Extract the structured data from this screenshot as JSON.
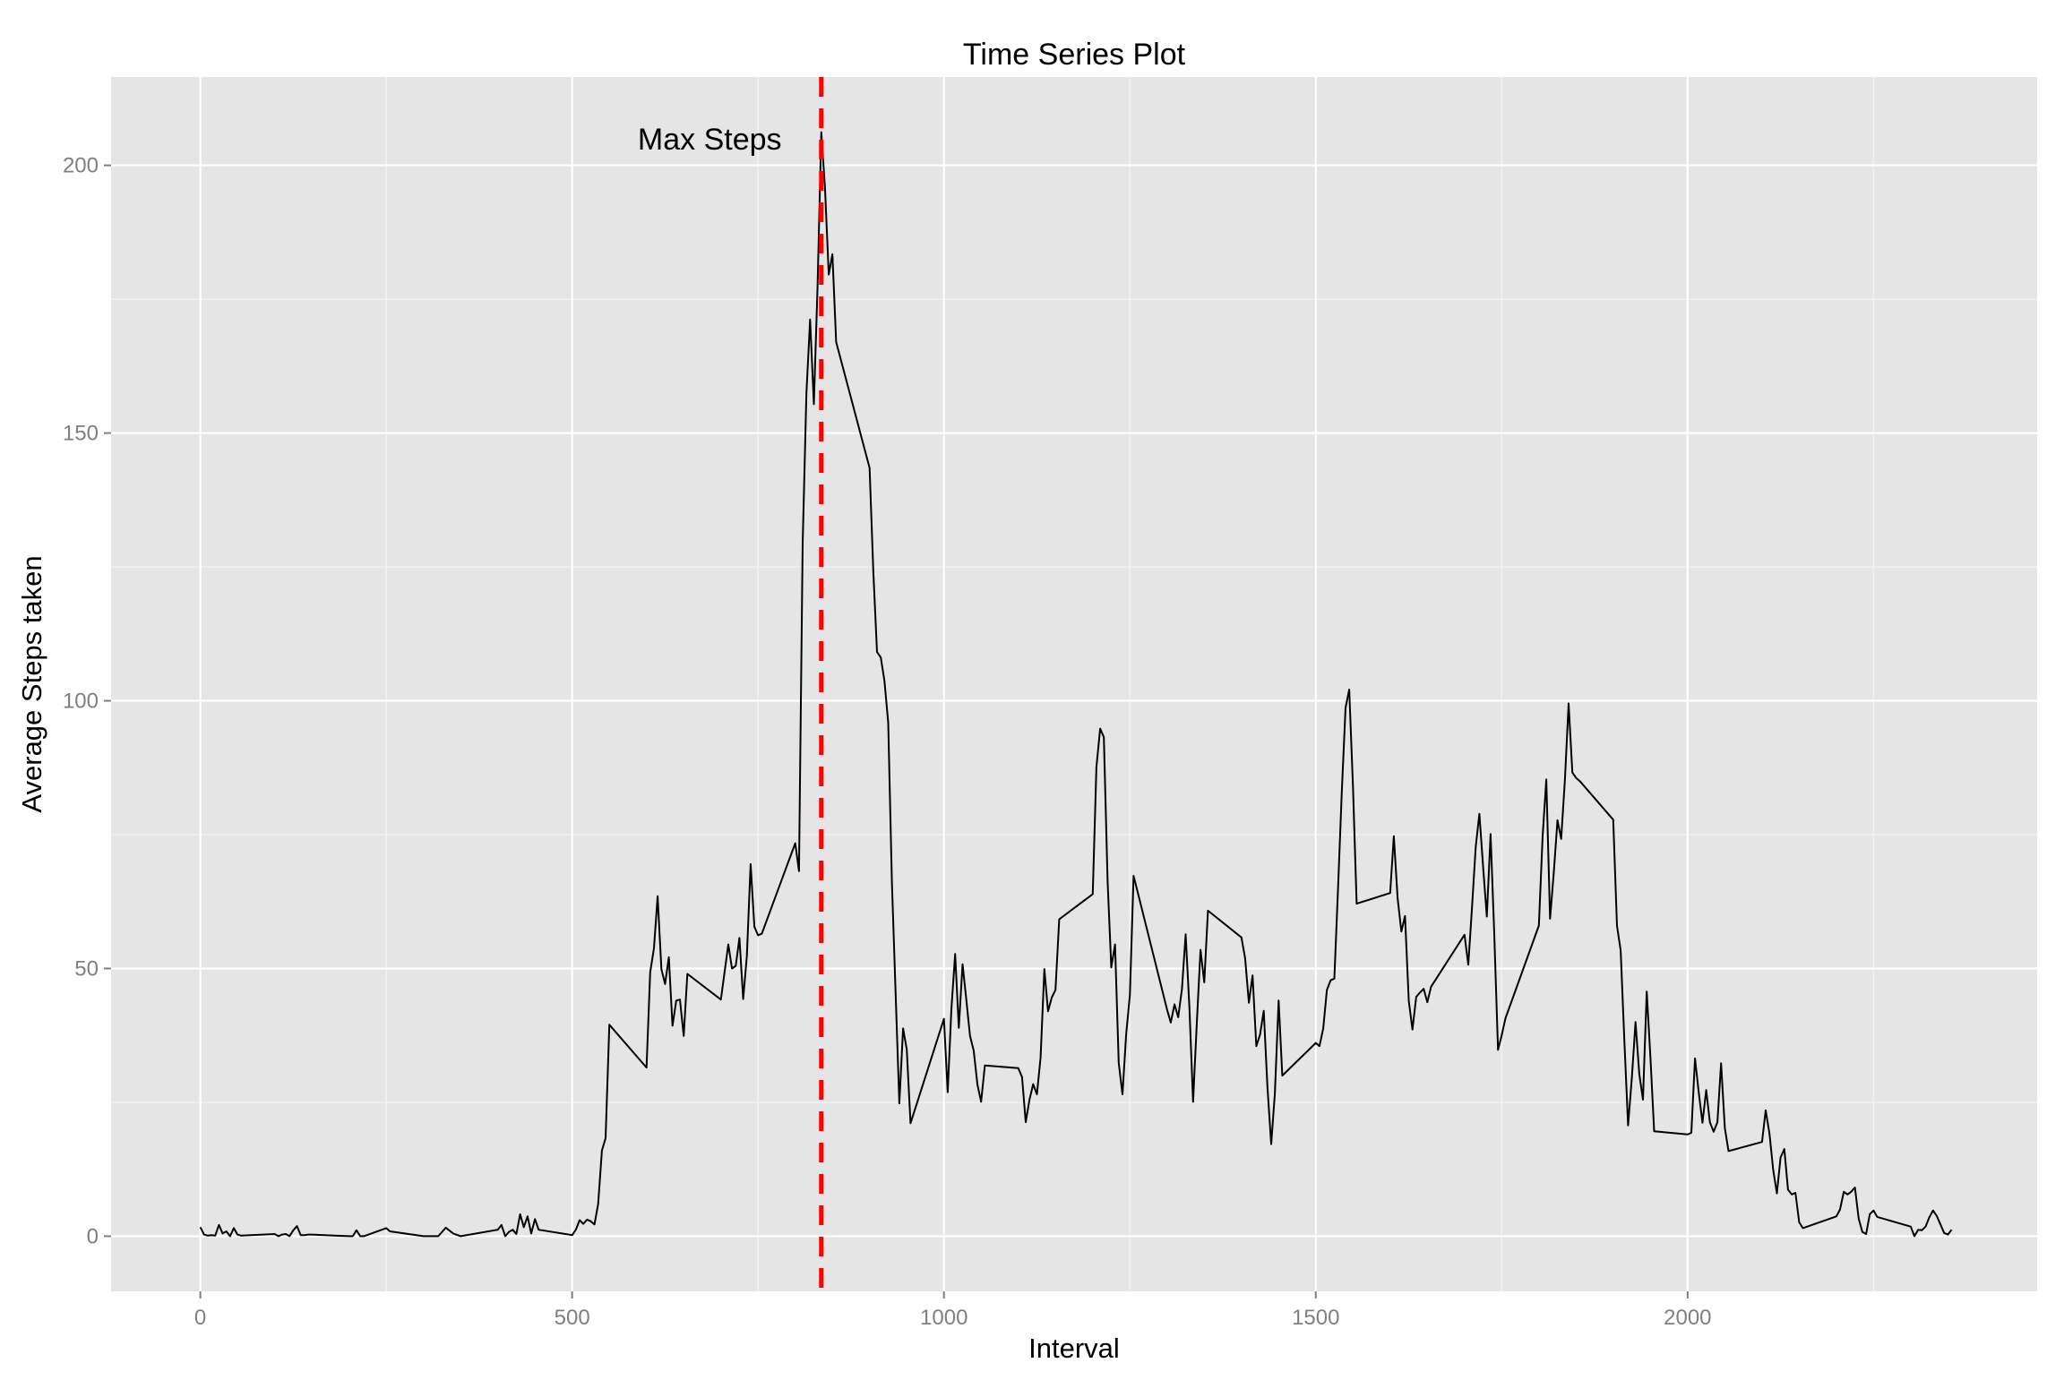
{
  "chart_data": {
    "type": "line",
    "title": "Time Series Plot",
    "xlabel": "Interval",
    "ylabel": "Average Steps taken",
    "xlim": [
      -120,
      2470
    ],
    "ylim": [
      -10.3,
      216.5
    ],
    "x_ticks": [
      0,
      500,
      1000,
      1500,
      2000
    ],
    "y_ticks": [
      0,
      50,
      100,
      150,
      200
    ],
    "x_tick_labels": [
      "0",
      "500",
      "1000",
      "1500",
      "2000"
    ],
    "y_tick_labels": [
      "0",
      "50",
      "100",
      "150",
      "200"
    ],
    "grid": true,
    "legend": "none",
    "colors": {
      "panel": "#e5e5e5",
      "grid_major": "#ffffff",
      "grid_minor": "#f2f2f2",
      "line": "#000000",
      "vline": "#ff0000",
      "tick_text": "#7f7f7f",
      "text": "#000000"
    },
    "vline": {
      "x": 835,
      "style": "dashed"
    },
    "annotation": {
      "text": "Max Steps",
      "x": 685,
      "y": 205
    },
    "series": [
      {
        "x": [
          0,
          5,
          10,
          15,
          20,
          25,
          30,
          35,
          40,
          45,
          50,
          55,
          100,
          105,
          110,
          115,
          120,
          125,
          130,
          135,
          140,
          145,
          150,
          200,
          205,
          210,
          215,
          220,
          250,
          255,
          300,
          310,
          320,
          330,
          340,
          350,
          400,
          405,
          410,
          415,
          420,
          425,
          430,
          435,
          440,
          445,
          450,
          455,
          500,
          505,
          510,
          515,
          520,
          525,
          530,
          535,
          540,
          545,
          550,
          600,
          605,
          610,
          615,
          620,
          625,
          630,
          635,
          640,
          645,
          650,
          655,
          700,
          705,
          710,
          715,
          720,
          725,
          730,
          735,
          740,
          745,
          750,
          755,
          800,
          805,
          810,
          815,
          820,
          825,
          830,
          835,
          840,
          845,
          850,
          855,
          900,
          905,
          910,
          915,
          920,
          925,
          930,
          935,
          940,
          945,
          950,
          955,
          1000,
          1005,
          1010,
          1015,
          1020,
          1025,
          1030,
          1035,
          1040,
          1045,
          1050,
          1055,
          1100,
          1105,
          1110,
          1115,
          1120,
          1125,
          1130,
          1135,
          1140,
          1145,
          1150,
          1155,
          1200,
          1205,
          1210,
          1215,
          1220,
          1225,
          1230,
          1235,
          1240,
          1245,
          1250,
          1255,
          1300,
          1305,
          1310,
          1315,
          1320,
          1325,
          1330,
          1335,
          1340,
          1345,
          1350,
          1355,
          1400,
          1405,
          1410,
          1415,
          1420,
          1425,
          1430,
          1435,
          1440,
          1445,
          1450,
          1455,
          1500,
          1505,
          1510,
          1515,
          1520,
          1525,
          1530,
          1535,
          1540,
          1545,
          1550,
          1555,
          1600,
          1605,
          1610,
          1615,
          1620,
          1625,
          1630,
          1635,
          1640,
          1645,
          1650,
          1655,
          1700,
          1705,
          1710,
          1715,
          1720,
          1725,
          1730,
          1735,
          1740,
          1745,
          1750,
          1755,
          1800,
          1805,
          1810,
          1815,
          1820,
          1825,
          1830,
          1835,
          1840,
          1845,
          1850,
          1855,
          1900,
          1905,
          1910,
          1915,
          1920,
          1925,
          1930,
          1935,
          1940,
          1945,
          1950,
          1955,
          2000,
          2005,
          2010,
          2015,
          2020,
          2025,
          2030,
          2035,
          2040,
          2045,
          2050,
          2055,
          2100,
          2105,
          2110,
          2115,
          2120,
          2125,
          2130,
          2135,
          2140,
          2145,
          2150,
          2155,
          2200,
          2205,
          2210,
          2215,
          2220,
          2225,
          2230,
          2235,
          2240,
          2245,
          2250,
          2255,
          2300,
          2305,
          2310,
          2315,
          2320,
          2325,
          2330,
          2335,
          2340,
          2345,
          2350,
          2355
        ],
        "y": [
          1.7,
          0.3,
          0.1,
          0.2,
          0.1,
          2.1,
          0.5,
          0.9,
          0.0,
          1.5,
          0.3,
          0.1,
          0.4,
          0.0,
          0.3,
          0.4,
          0.0,
          1.1,
          1.9,
          0.2,
          0.2,
          0.3,
          0.3,
          0.0,
          0.0,
          1.1,
          0.0,
          0.0,
          1.5,
          0.9,
          0.0,
          0.0,
          0.0,
          1.6,
          0.5,
          0.0,
          1.2,
          2.1,
          0.0,
          0.8,
          1.2,
          0.4,
          4.1,
          1.7,
          3.7,
          0.5,
          3.2,
          1.2,
          0.2,
          1.2,
          3.0,
          2.3,
          3.1,
          2.8,
          2.2,
          6.0,
          16.0,
          18.3,
          39.5,
          31.5,
          49.3,
          53.8,
          63.5,
          49.9,
          47.1,
          52.1,
          39.3,
          44.0,
          44.2,
          37.4,
          49.0,
          44.2,
          49.3,
          54.5,
          50.0,
          50.5,
          55.7,
          44.3,
          52.3,
          69.5,
          57.8,
          56.2,
          56.5,
          73.4,
          68.2,
          129.4,
          157.5,
          171.2,
          155.4,
          177.3,
          206.2,
          195.9,
          179.6,
          183.4,
          167.0,
          143.5,
          124.0,
          109.1,
          108.1,
          103.7,
          95.9,
          66.2,
          45.2,
          24.8,
          38.8,
          34.9,
          21.1,
          40.6,
          26.9,
          42.4,
          52.7,
          38.9,
          50.8,
          44.3,
          37.4,
          34.7,
          28.3,
          25.1,
          31.9,
          31.4,
          29.7,
          21.3,
          25.5,
          28.4,
          26.5,
          33.4,
          49.9,
          42.0,
          44.6,
          46.0,
          59.2,
          63.9,
          87.6,
          94.8,
          93.2,
          66.3,
          50.2,
          54.5,
          32.4,
          26.5,
          37.7,
          45.1,
          67.3,
          42.3,
          39.9,
          43.3,
          40.9,
          46.2,
          56.4,
          42.8,
          25.1,
          39.9,
          53.5,
          47.4,
          60.8,
          55.8,
          51.9,
          43.6,
          48.7,
          35.5,
          37.6,
          42.1,
          27.9,
          17.2,
          26.6,
          44.0,
          30.0,
          36.1,
          35.5,
          38.8,
          46.0,
          47.8,
          48.1,
          65.3,
          82.9,
          98.7,
          102.1,
          84.0,
          62.1,
          64.1,
          74.7,
          63.2,
          56.9,
          59.8,
          43.9,
          38.6,
          44.7,
          45.5,
          46.2,
          43.7,
          46.6,
          56.3,
          50.7,
          61.2,
          72.7,
          78.9,
          68.9,
          59.7,
          75.1,
          56.5,
          34.8,
          37.5,
          40.7,
          58.0,
          74.7,
          85.3,
          59.3,
          67.8,
          77.7,
          74.2,
          85.3,
          99.5,
          86.6,
          85.6,
          85.0,
          77.8,
          58.0,
          53.4,
          36.3,
          20.7,
          29.6,
          40.0,
          30.3,
          25.5,
          45.7,
          33.5,
          19.6,
          19.0,
          19.3,
          33.2,
          26.8,
          21.2,
          27.3,
          21.3,
          19.5,
          21.3,
          32.3,
          20.2,
          15.9,
          17.6,
          23.5,
          19.2,
          12.5,
          8.0,
          14.7,
          16.3,
          8.7,
          7.8,
          8.1,
          2.6,
          1.5,
          3.7,
          5.0,
          8.3,
          7.8,
          8.3,
          9.1,
          3.3,
          0.8,
          0.4,
          4.1,
          4.8,
          3.6,
          1.8,
          0.0,
          1.2,
          1.1,
          1.8,
          3.5,
          4.8,
          3.8,
          2.2,
          0.6,
          0.3,
          1.2
        ],
        "color": "#000000"
      }
    ]
  }
}
